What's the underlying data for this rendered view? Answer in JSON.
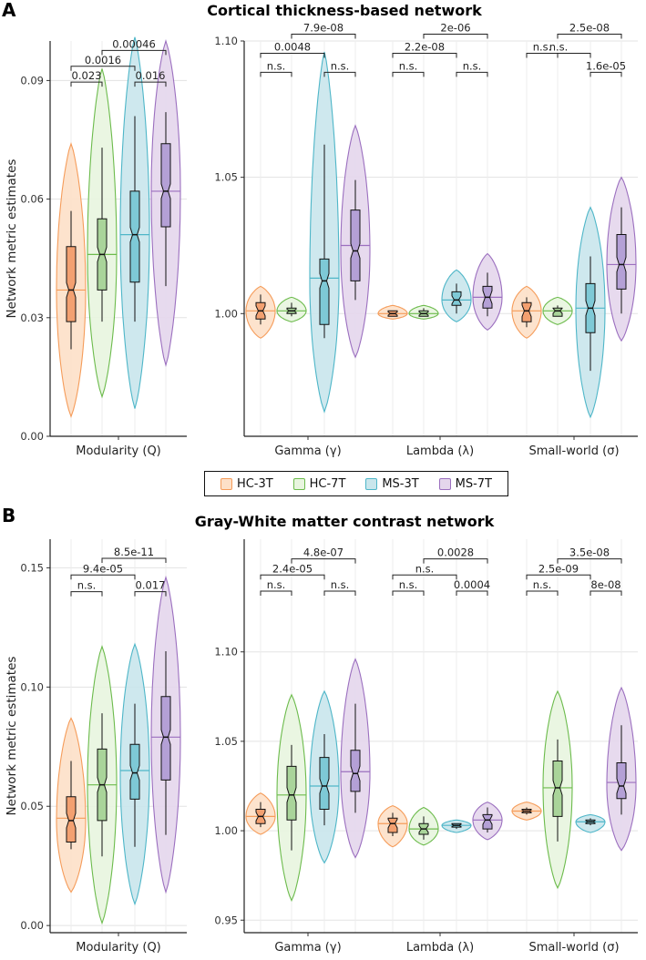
{
  "panels": [
    {
      "letter": "A",
      "title": "Cortical thickness-based network"
    },
    {
      "letter": "B",
      "title": "Gray-White matter contrast network"
    }
  ],
  "legend": [
    {
      "label": "HC-3T",
      "fill": "#fde0c8",
      "stroke": "#f59c5a",
      "box": "#f3a070"
    },
    {
      "label": "HC-7T",
      "fill": "#e8f5df",
      "stroke": "#6cbb4c",
      "box": "#a9d49a"
    },
    {
      "label": "MS-3T",
      "fill": "#c9e6ec",
      "stroke": "#4eb6c8",
      "box": "#7ec9d6"
    },
    {
      "label": "MS-7T",
      "fill": "#e4d6ec",
      "stroke": "#9b6fbf",
      "box": "#b4a0d6"
    }
  ],
  "chart_data": [
    {
      "type": "violin",
      "panel": "A",
      "ylabel": "Network metric estimates",
      "categories": [
        "Modularity (Q)"
      ],
      "ylim": [
        0,
        0.1
      ],
      "yticks": [
        "0.00",
        "0.03",
        "0.06",
        "0.09"
      ],
      "series": [
        {
          "name": "HC-3T",
          "groups": [
            {
              "min": 0.005,
              "max": 0.074,
              "median": 0.037,
              "q1": 0.029,
              "q3": 0.048,
              "wlo": 0.022,
              "whi": 0.057,
              "mean": 0.037
            }
          ]
        },
        {
          "name": "HC-7T",
          "groups": [
            {
              "min": 0.01,
              "max": 0.093,
              "median": 0.046,
              "q1": 0.037,
              "q3": 0.055,
              "wlo": 0.029,
              "whi": 0.073,
              "mean": 0.046
            }
          ]
        },
        {
          "name": "MS-3T",
          "groups": [
            {
              "min": 0.007,
              "max": 0.101,
              "median": 0.051,
              "q1": 0.039,
              "q3": 0.062,
              "wlo": 0.029,
              "whi": 0.081,
              "mean": 0.051
            }
          ]
        },
        {
          "name": "MS-7T",
          "groups": [
            {
              "min": 0.018,
              "max": 0.1,
              "median": 0.062,
              "q1": 0.053,
              "q3": 0.074,
              "wlo": 0.038,
              "whi": 0.082,
              "mean": 0.062
            }
          ]
        }
      ],
      "comparisons": [
        {
          "category": 0,
          "from": 0,
          "to": 1,
          "label": "0.023",
          "y": 0.0896
        },
        {
          "category": 0,
          "from": 2,
          "to": 3,
          "label": "0.016",
          "y": 0.0896
        },
        {
          "category": 0,
          "from": 0,
          "to": 2,
          "label": "0.0016",
          "y": 0.0936
        },
        {
          "category": 0,
          "from": 1,
          "to": 3,
          "label": "0.00046",
          "y": 0.0976
        }
      ]
    },
    {
      "type": "violin",
      "panel": "A",
      "categories": [
        "Gamma (γ)",
        "Lambda (λ)",
        "Small-world (σ)"
      ],
      "ylim": [
        0.955,
        1.1
      ],
      "yticks": [
        "1.00",
        "1.05",
        "1.10"
      ],
      "series": [
        {
          "name": "HC-3T",
          "groups": [
            {
              "min": 0.991,
              "max": 1.01,
              "median": 1.001,
              "q1": 0.998,
              "q3": 1.004,
              "wlo": 0.996,
              "whi": 1.007,
              "mean": 1.001
            },
            {
              "min": 0.998,
              "max": 1.003,
              "median": 1.0,
              "q1": 0.999,
              "q3": 1.001,
              "wlo": 0.999,
              "whi": 1.001,
              "mean": 1.0
            },
            {
              "min": 0.991,
              "max": 1.01,
              "median": 1.001,
              "q1": 0.997,
              "q3": 1.004,
              "wlo": 0.995,
              "whi": 1.006,
              "mean": 1.001
            }
          ]
        },
        {
          "name": "HC-7T",
          "groups": [
            {
              "min": 0.997,
              "max": 1.006,
              "median": 1.001,
              "q1": 1.0,
              "q3": 1.002,
              "wlo": 0.999,
              "whi": 1.004,
              "mean": 1.001
            },
            {
              "min": 0.998,
              "max": 1.003,
              "median": 1.0,
              "q1": 0.999,
              "q3": 1.001,
              "wlo": 0.999,
              "whi": 1.002,
              "mean": 1.0
            },
            {
              "min": 0.996,
              "max": 1.006,
              "median": 1.001,
              "q1": 0.999,
              "q3": 1.002,
              "wlo": 0.999,
              "whi": 1.003,
              "mean": 1.001
            }
          ]
        },
        {
          "name": "MS-3T",
          "groups": [
            {
              "min": 0.964,
              "max": 1.096,
              "median": 1.012,
              "q1": 0.996,
              "q3": 1.02,
              "wlo": 0.991,
              "whi": 1.062,
              "mean": 1.013
            },
            {
              "min": 0.997,
              "max": 1.016,
              "median": 1.005,
              "q1": 1.003,
              "q3": 1.008,
              "wlo": 1.0,
              "whi": 1.011,
              "mean": 1.005
            },
            {
              "min": 0.962,
              "max": 1.039,
              "median": 1.002,
              "q1": 0.993,
              "q3": 1.011,
              "wlo": 0.979,
              "whi": 1.021,
              "mean": 1.002
            }
          ]
        },
        {
          "name": "MS-7T",
          "groups": [
            {
              "min": 0.984,
              "max": 1.069,
              "median": 1.023,
              "q1": 1.012,
              "q3": 1.038,
              "wlo": 1.005,
              "whi": 1.049,
              "mean": 1.025
            },
            {
              "min": 0.994,
              "max": 1.022,
              "median": 1.006,
              "q1": 1.002,
              "q3": 1.01,
              "wlo": 0.999,
              "whi": 1.015,
              "mean": 1.006
            },
            {
              "min": 0.99,
              "max": 1.05,
              "median": 1.018,
              "q1": 1.009,
              "q3": 1.029,
              "wlo": 1.0,
              "whi": 1.039,
              "mean": 1.018
            }
          ]
        }
      ],
      "comparisons": [
        {
          "category": 0,
          "from": 0,
          "to": 1,
          "label": "n.s.",
          "y": 1.0885
        },
        {
          "category": 0,
          "from": 2,
          "to": 3,
          "label": "n.s.",
          "y": 1.0885
        },
        {
          "category": 0,
          "from": 0,
          "to": 2,
          "label": "0.0048",
          "y": 1.0955
        },
        {
          "category": 0,
          "from": 1,
          "to": 3,
          "label": "7.9e-08",
          "y": 1.1025
        },
        {
          "category": 1,
          "from": 0,
          "to": 1,
          "label": "n.s.",
          "y": 1.0885
        },
        {
          "category": 1,
          "from": 2,
          "to": 3,
          "label": "n.s.",
          "y": 1.0885
        },
        {
          "category": 1,
          "from": 0,
          "to": 2,
          "label": "2.2e-08",
          "y": 1.0955
        },
        {
          "category": 1,
          "from": 1,
          "to": 3,
          "label": "2e-06",
          "y": 1.1025
        },
        {
          "category": 2,
          "from": 0,
          "to": 1,
          "label": "n.s.",
          "y": 1.0955
        },
        {
          "category": 2,
          "from": 2,
          "to": 3,
          "label": "1.6e-05",
          "y": 1.0885
        },
        {
          "category": 2,
          "from": 0,
          "to": 2,
          "label": "n.s.",
          "y": 1.0955
        },
        {
          "category": 2,
          "from": 1,
          "to": 3,
          "label": "2.5e-08",
          "y": 1.1025
        }
      ]
    },
    {
      "type": "violin",
      "panel": "B",
      "ylabel": "Network metric estimates",
      "categories": [
        "Modularity (Q)"
      ],
      "ylim": [
        -0.003,
        0.162
      ],
      "yticks": [
        "0.00",
        "0.05",
        "0.10",
        "0.15"
      ],
      "series": [
        {
          "name": "HC-3T",
          "groups": [
            {
              "min": 0.014,
              "max": 0.087,
              "median": 0.044,
              "q1": 0.035,
              "q3": 0.054,
              "wlo": 0.032,
              "whi": 0.069,
              "mean": 0.045
            }
          ]
        },
        {
          "name": "HC-7T",
          "groups": [
            {
              "min": 0.001,
              "max": 0.117,
              "median": 0.059,
              "q1": 0.044,
              "q3": 0.074,
              "wlo": 0.029,
              "whi": 0.089,
              "mean": 0.059
            }
          ]
        },
        {
          "name": "MS-3T",
          "groups": [
            {
              "min": 0.009,
              "max": 0.118,
              "median": 0.064,
              "q1": 0.053,
              "q3": 0.076,
              "wlo": 0.033,
              "whi": 0.093,
              "mean": 0.065
            }
          ]
        },
        {
          "name": "MS-7T",
          "groups": [
            {
              "min": 0.014,
              "max": 0.146,
              "median": 0.079,
              "q1": 0.061,
              "q3": 0.096,
              "wlo": 0.038,
              "whi": 0.115,
              "mean": 0.079
            }
          ]
        }
      ],
      "comparisons": [
        {
          "category": 0,
          "from": 0,
          "to": 1,
          "label": "n.s.",
          "y": 0.14
        },
        {
          "category": 0,
          "from": 2,
          "to": 3,
          "label": "0.017",
          "y": 0.14
        },
        {
          "category": 0,
          "from": 0,
          "to": 2,
          "label": "9.4e-05",
          "y": 0.147
        },
        {
          "category": 0,
          "from": 1,
          "to": 3,
          "label": "8.5e-11",
          "y": 0.154
        }
      ]
    },
    {
      "type": "violin",
      "panel": "B",
      "categories": [
        "Gamma (γ)",
        "Lambda (λ)",
        "Small-world (σ)"
      ],
      "ylim": [
        0.943,
        1.163
      ],
      "yticks": [
        "0.95",
        "1.00",
        "1.05",
        "1.10"
      ],
      "series": [
        {
          "name": "HC-3T",
          "groups": [
            {
              "min": 0.998,
              "max": 1.021,
              "median": 1.008,
              "q1": 1.004,
              "q3": 1.012,
              "wlo": 1.002,
              "whi": 1.016,
              "mean": 1.008
            },
            {
              "min": 0.991,
              "max": 1.014,
              "median": 1.004,
              "q1": 0.999,
              "q3": 1.007,
              "wlo": 0.997,
              "whi": 1.01,
              "mean": 1.004
            },
            {
              "min": 1.006,
              "max": 1.016,
              "median": 1.011,
              "q1": 1.01,
              "q3": 1.012,
              "wlo": 1.009,
              "whi": 1.013,
              "mean": 1.011
            }
          ]
        },
        {
          "name": "HC-7T",
          "groups": [
            {
              "min": 0.961,
              "max": 1.076,
              "median": 1.02,
              "q1": 1.006,
              "q3": 1.036,
              "wlo": 0.989,
              "whi": 1.048,
              "mean": 1.02
            },
            {
              "min": 0.992,
              "max": 1.013,
              "median": 1.001,
              "q1": 0.998,
              "q3": 1.004,
              "wlo": 0.995,
              "whi": 1.008,
              "mean": 1.001
            },
            {
              "min": 0.968,
              "max": 1.078,
              "median": 1.024,
              "q1": 1.008,
              "q3": 1.039,
              "wlo": 0.994,
              "whi": 1.051,
              "mean": 1.024
            }
          ]
        },
        {
          "name": "MS-3T",
          "groups": [
            {
              "min": 0.982,
              "max": 1.078,
              "median": 1.025,
              "q1": 1.012,
              "q3": 1.041,
              "wlo": 1.003,
              "whi": 1.054,
              "mean": 1.025
            },
            {
              "min": 0.999,
              "max": 1.006,
              "median": 1.003,
              "q1": 1.002,
              "q3": 1.004,
              "wlo": 1.001,
              "whi": 1.004,
              "mean": 1.003
            },
            {
              "min": 0.999,
              "max": 1.009,
              "median": 1.005,
              "q1": 1.004,
              "q3": 1.006,
              "wlo": 1.003,
              "whi": 1.007,
              "mean": 1.005
            }
          ]
        },
        {
          "name": "MS-7T",
          "groups": [
            {
              "min": 0.985,
              "max": 1.096,
              "median": 1.032,
              "q1": 1.022,
              "q3": 1.045,
              "wlo": 1.01,
              "whi": 1.071,
              "mean": 1.033
            },
            {
              "min": 0.995,
              "max": 1.016,
              "median": 1.006,
              "q1": 1.001,
              "q3": 1.009,
              "wlo": 0.999,
              "whi": 1.013,
              "mean": 1.006
            },
            {
              "min": 0.989,
              "max": 1.08,
              "median": 1.025,
              "q1": 1.018,
              "q3": 1.038,
              "wlo": 1.009,
              "whi": 1.059,
              "mean": 1.027
            }
          ]
        }
      ],
      "comparisons": [
        {
          "category": 0,
          "from": 0,
          "to": 1,
          "label": "n.s.",
          "y": 1.134
        },
        {
          "category": 0,
          "from": 2,
          "to": 3,
          "label": "n.s.",
          "y": 1.134
        },
        {
          "category": 0,
          "from": 0,
          "to": 2,
          "label": "2.4e-05",
          "y": 1.143
        },
        {
          "category": 0,
          "from": 1,
          "to": 3,
          "label": "4.8e-07",
          "y": 1.152
        },
        {
          "category": 1,
          "from": 0,
          "to": 1,
          "label": "n.s.",
          "y": 1.134
        },
        {
          "category": 1,
          "from": 2,
          "to": 3,
          "label": "0.0004",
          "y": 1.134
        },
        {
          "category": 1,
          "from": 0,
          "to": 2,
          "label": "n.s.",
          "y": 1.143
        },
        {
          "category": 1,
          "from": 1,
          "to": 3,
          "label": "0.0028",
          "y": 1.152
        },
        {
          "category": 2,
          "from": 0,
          "to": 1,
          "label": "n.s.",
          "y": 1.134
        },
        {
          "category": 2,
          "from": 2,
          "to": 3,
          "label": "8e-08",
          "y": 1.134
        },
        {
          "category": 2,
          "from": 0,
          "to": 2,
          "label": "2.5e-09",
          "y": 1.143
        },
        {
          "category": 2,
          "from": 1,
          "to": 3,
          "label": "3.5e-08",
          "y": 1.152
        }
      ]
    }
  ]
}
